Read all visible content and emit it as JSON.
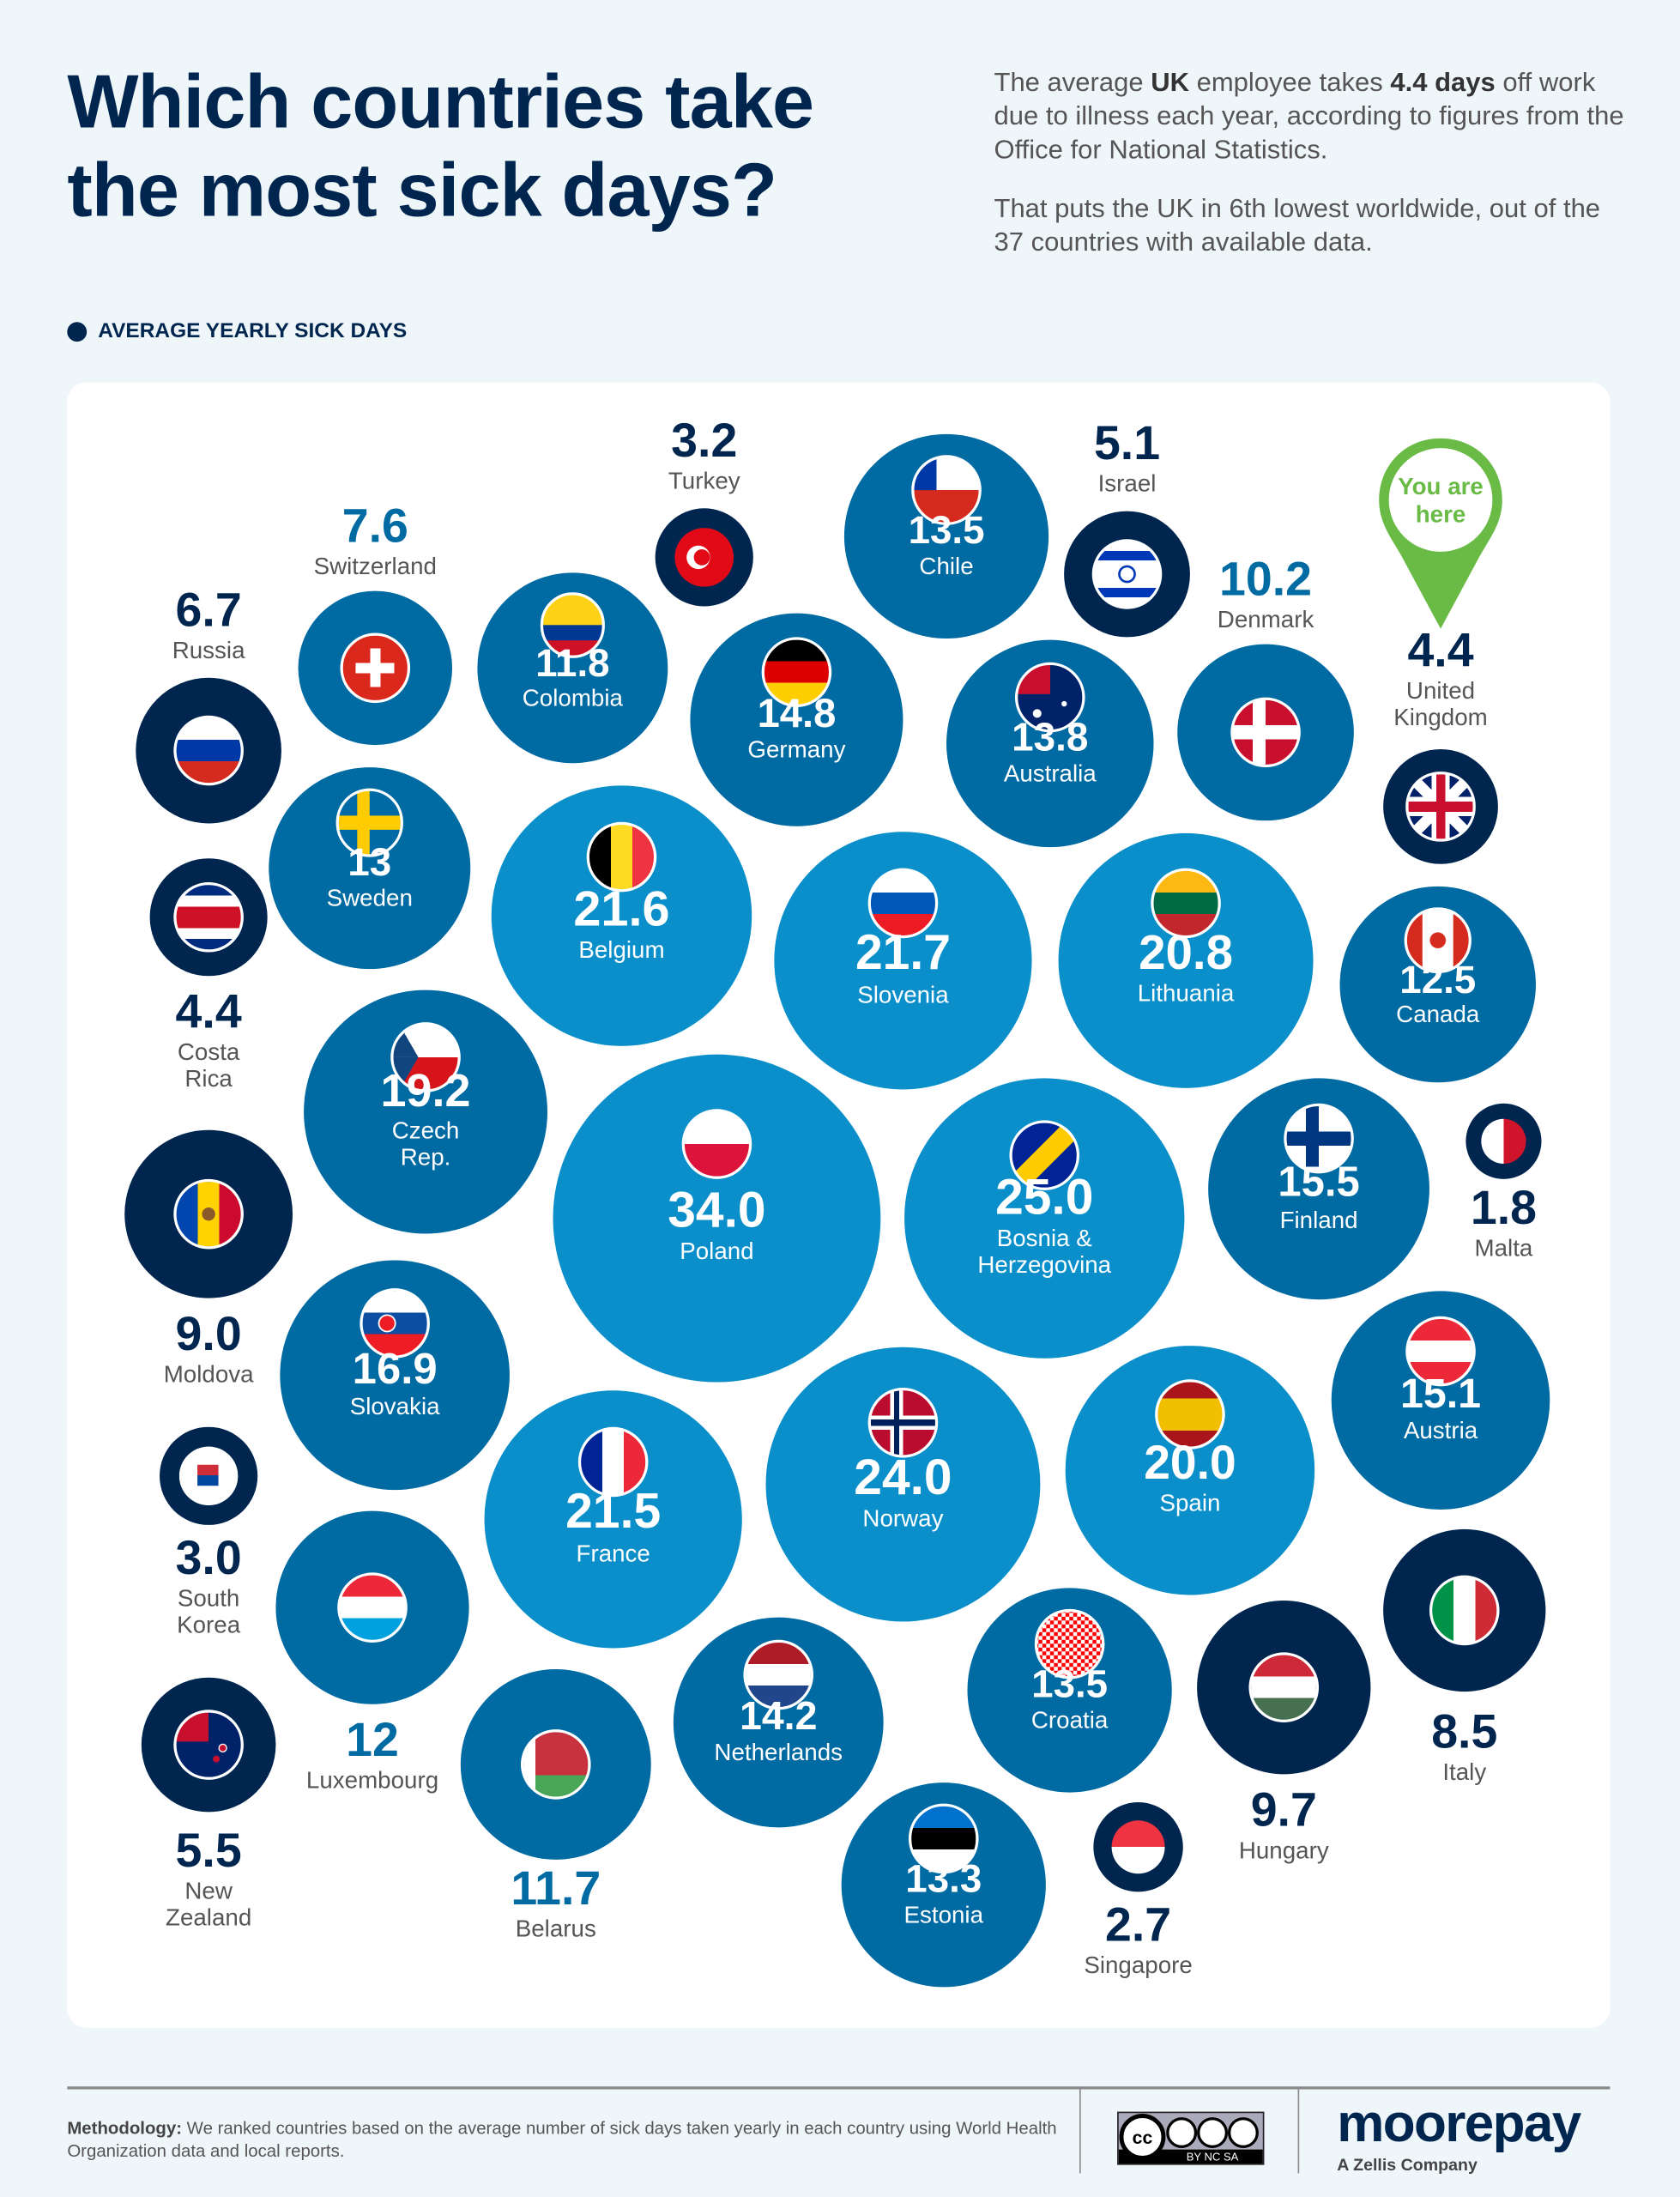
{
  "header": {
    "title_line1": "Which countries take",
    "title_line2": "the most sick days?",
    "intro_p1_a": "The average ",
    "intro_p1_b": "UK",
    "intro_p1_c": " employee takes ",
    "intro_p1_d": "4.4 days",
    "intro_p1_e": " off work due to illness each year, according to figures from the Office for National Statistics.",
    "intro_p2": "That puts the UK in 6th lowest worldwide, out of the 37 countries with available data.",
    "legend": "AVERAGE YEARLY SICK DAYS"
  },
  "pin": {
    "line1": "You are",
    "line2": "here",
    "color": "#6abb46"
  },
  "colors": {
    "navy": "#00264f",
    "mid": "#006aa3",
    "light": "#0a8fca",
    "card": "#ffffff",
    "background": "#eff6fa"
  },
  "chart_data": {
    "type": "bubble",
    "title": "Which countries take the most sick days?",
    "measure": "Average yearly sick days",
    "points": [
      {
        "country": "Turkey",
        "lines": [
          "Turkey"
        ],
        "value": "3.2",
        "flag": "turkey-flag"
      },
      {
        "country": "Chile",
        "lines": [
          "Chile"
        ],
        "value": "13.5",
        "flag": "chile-flag"
      },
      {
        "country": "Israel",
        "lines": [
          "Israel"
        ],
        "value": "5.1",
        "flag": "israel-flag"
      },
      {
        "country": "Denmark",
        "lines": [
          "Denmark"
        ],
        "value": "10.2",
        "flag": "denmark-flag"
      },
      {
        "country": "United Kingdom",
        "lines": [
          "United",
          "Kingdom"
        ],
        "value": "4.4",
        "flag": "uk-flag"
      },
      {
        "country": "Switzerland",
        "lines": [
          "Switzerland"
        ],
        "value": "7.6",
        "flag": "switzerland-flag"
      },
      {
        "country": "Colombia",
        "lines": [
          "Colombia"
        ],
        "value": "11.8",
        "flag": "colombia-flag"
      },
      {
        "country": "Russia",
        "lines": [
          "Russia"
        ],
        "value": "6.7",
        "flag": "russia-flag"
      },
      {
        "country": "Germany",
        "lines": [
          "Germany"
        ],
        "value": "14.8",
        "flag": "germany-flag"
      },
      {
        "country": "Australia",
        "lines": [
          "Australia"
        ],
        "value": "13.8",
        "flag": "australia-flag"
      },
      {
        "country": "Sweden",
        "lines": [
          "Sweden"
        ],
        "value": "13",
        "flag": "sweden-flag"
      },
      {
        "country": "Costa Rica",
        "lines": [
          "Costa",
          "Rica"
        ],
        "value": "4.4",
        "flag": "costa-rica-flag"
      },
      {
        "country": "Belgium",
        "lines": [
          "Belgium"
        ],
        "value": "21.6",
        "flag": "belgium-flag"
      },
      {
        "country": "Slovenia",
        "lines": [
          "Slovenia"
        ],
        "value": "21.7",
        "flag": "slovenia-flag"
      },
      {
        "country": "Lithuania",
        "lines": [
          "Lithuania"
        ],
        "value": "20.8",
        "flag": "lithuania-flag"
      },
      {
        "country": "Canada",
        "lines": [
          "Canada"
        ],
        "value": "12.5",
        "flag": "canada-flag"
      },
      {
        "country": "Czech Rep.",
        "lines": [
          "Czech",
          "Rep."
        ],
        "value": "19.2",
        "flag": "czech-flag"
      },
      {
        "country": "Poland",
        "lines": [
          "Poland"
        ],
        "value": "34.0",
        "flag": "poland-flag"
      },
      {
        "country": "Bosnia & Herzegovina",
        "lines": [
          "Bosnia &",
          "Herzegovina"
        ],
        "value": "25.0",
        "flag": "bosnia-flag"
      },
      {
        "country": "Finland",
        "lines": [
          "Finland"
        ],
        "value": "15.5",
        "flag": "finland-flag"
      },
      {
        "country": "Malta",
        "lines": [
          "Malta"
        ],
        "value": "1.8",
        "flag": "malta-flag"
      },
      {
        "country": "Moldova",
        "lines": [
          "Moldova"
        ],
        "value": "9.0",
        "flag": "moldova-flag"
      },
      {
        "country": "Slovakia",
        "lines": [
          "Slovakia"
        ],
        "value": "16.9",
        "flag": "slovakia-flag"
      },
      {
        "country": "South Korea",
        "lines": [
          "South",
          "Korea"
        ],
        "value": "3.0",
        "flag": "south-korea-flag"
      },
      {
        "country": "France",
        "lines": [
          "France"
        ],
        "value": "21.5",
        "flag": "france-flag"
      },
      {
        "country": "Norway",
        "lines": [
          "Norway"
        ],
        "value": "24.0",
        "flag": "norway-flag"
      },
      {
        "country": "Spain",
        "lines": [
          "Spain"
        ],
        "value": "20.0",
        "flag": "spain-flag"
      },
      {
        "country": "Austria",
        "lines": [
          "Austria"
        ],
        "value": "15.1",
        "flag": "austria-flag"
      },
      {
        "country": "Luxembourg",
        "lines": [
          "Luxembourg"
        ],
        "value": "12",
        "flag": "luxembourg-flag"
      },
      {
        "country": "Italy",
        "lines": [
          "Italy"
        ],
        "value": "8.5",
        "flag": "italy-flag"
      },
      {
        "country": "Netherlands",
        "lines": [
          "Netherlands"
        ],
        "value": "14.2",
        "flag": "netherlands-flag"
      },
      {
        "country": "Croatia",
        "lines": [
          "Croatia"
        ],
        "value": "13.5",
        "flag": "croatia-flag"
      },
      {
        "country": "Hungary",
        "lines": [
          "Hungary"
        ],
        "value": "9.7",
        "flag": "hungary-flag"
      },
      {
        "country": "New Zealand",
        "lines": [
          "New",
          "Zealand"
        ],
        "value": "5.5",
        "flag": "new-zealand-flag"
      },
      {
        "country": "Belarus",
        "lines": [
          "Belarus"
        ],
        "value": "11.7",
        "flag": "belarus-flag"
      },
      {
        "country": "Estonia",
        "lines": [
          "Estonia"
        ],
        "value": "13.3",
        "flag": "estonia-flag"
      },
      {
        "country": "Singapore",
        "lines": [
          "Singapore"
        ],
        "value": "2.7",
        "flag": "singapore-flag"
      }
    ]
  },
  "footer": {
    "method_label": "Methodology:",
    "method_text": " We ranked countries based on the average number of sick days taken yearly in each country using World Health Organization data and local reports.",
    "license": "BY NC SA",
    "brand": "moorepay",
    "brand_sub": "A Zellis Company"
  }
}
